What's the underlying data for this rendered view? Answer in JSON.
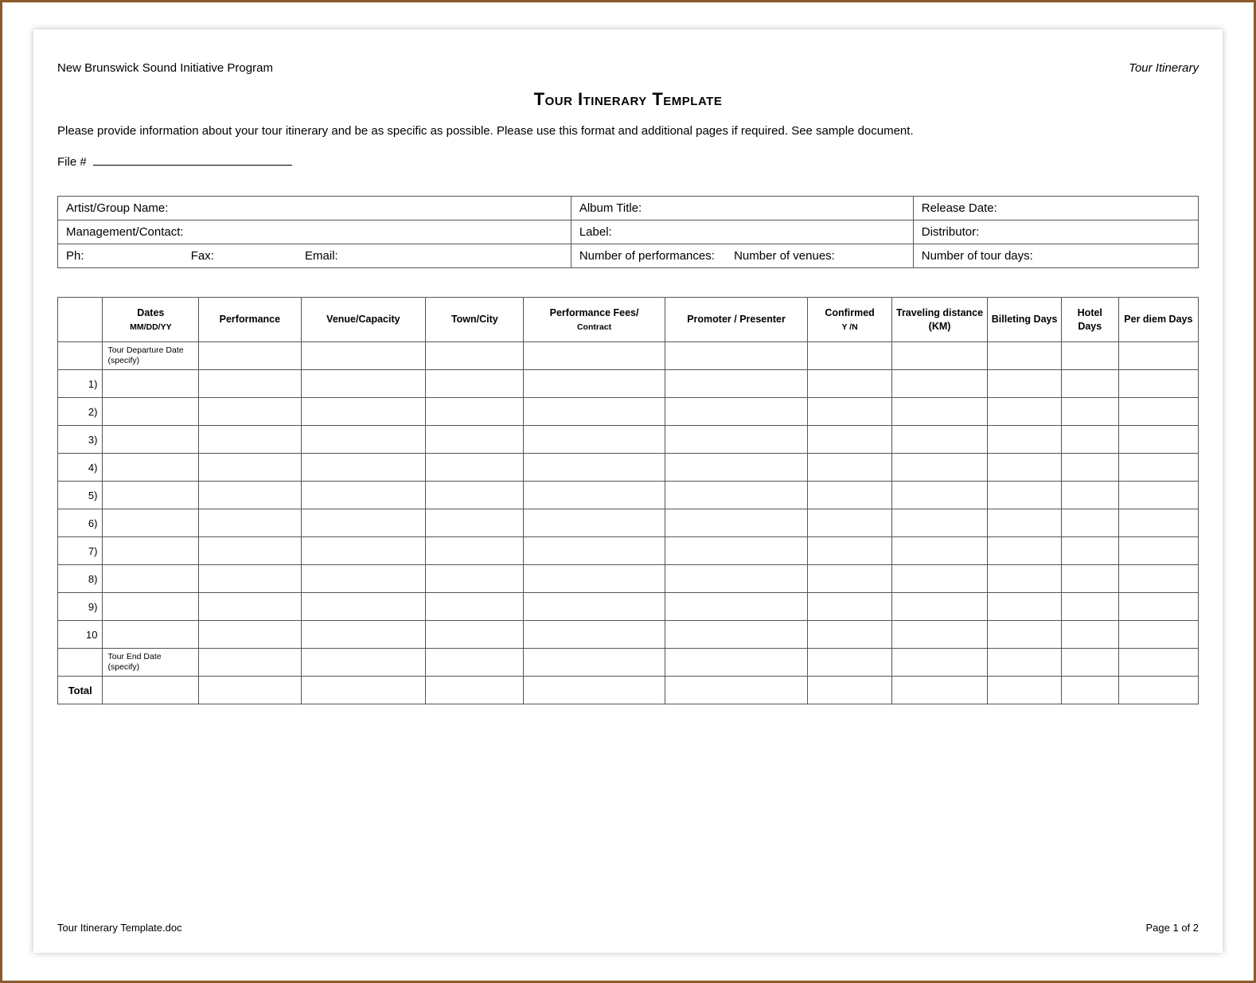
{
  "header": {
    "left": "New Brunswick Sound Initiative Program",
    "right": "Tour Itinerary"
  },
  "title": "Tour Itinerary Template",
  "instructions": "Please provide information about your tour itinerary and be as specific as possible. Please use this format and additional pages if required.  See sample document.",
  "file_label": "File #",
  "info_table": {
    "row1": {
      "c1": "Artist/Group Name:",
      "c2": "Album Title:",
      "c3": "Release Date:"
    },
    "row2": {
      "c1": "Management/Contact:",
      "c2": "Label:",
      "c3": "Distributor:"
    },
    "row3": {
      "ph": "Ph:",
      "fax": "Fax:",
      "email": "Email:",
      "perf": "Number of performances:",
      "venues": "Number of venues:",
      "tourdays": "Number of tour days:"
    }
  },
  "main_table": {
    "headers": {
      "h0": "",
      "h1": "Dates",
      "h1_sub": "MM/DD/YY",
      "h2": "Performance",
      "h3": "Venue/Capacity",
      "h4": "Town/City",
      "h5": "Performance Fees/",
      "h5_sub": "Contract",
      "h6": "Promoter / Presenter",
      "h7": "Confirmed",
      "h7_sub": "Y /N",
      "h8": "Traveling distance (KM)",
      "h9": "Billeting Days",
      "h10": "Hotel Days",
      "h11": "Per diem Days"
    },
    "departure_note": "Tour Departure Date (specify)",
    "end_note": "Tour End Date (specify)",
    "row_labels": [
      "1)",
      "2)",
      "3)",
      "4)",
      "5)",
      "6)",
      "7)",
      "8)",
      "9)",
      "10"
    ],
    "total_label": "Total"
  },
  "footer": {
    "left": "Tour Itinerary Template.doc",
    "right": "Page 1 of 2"
  }
}
